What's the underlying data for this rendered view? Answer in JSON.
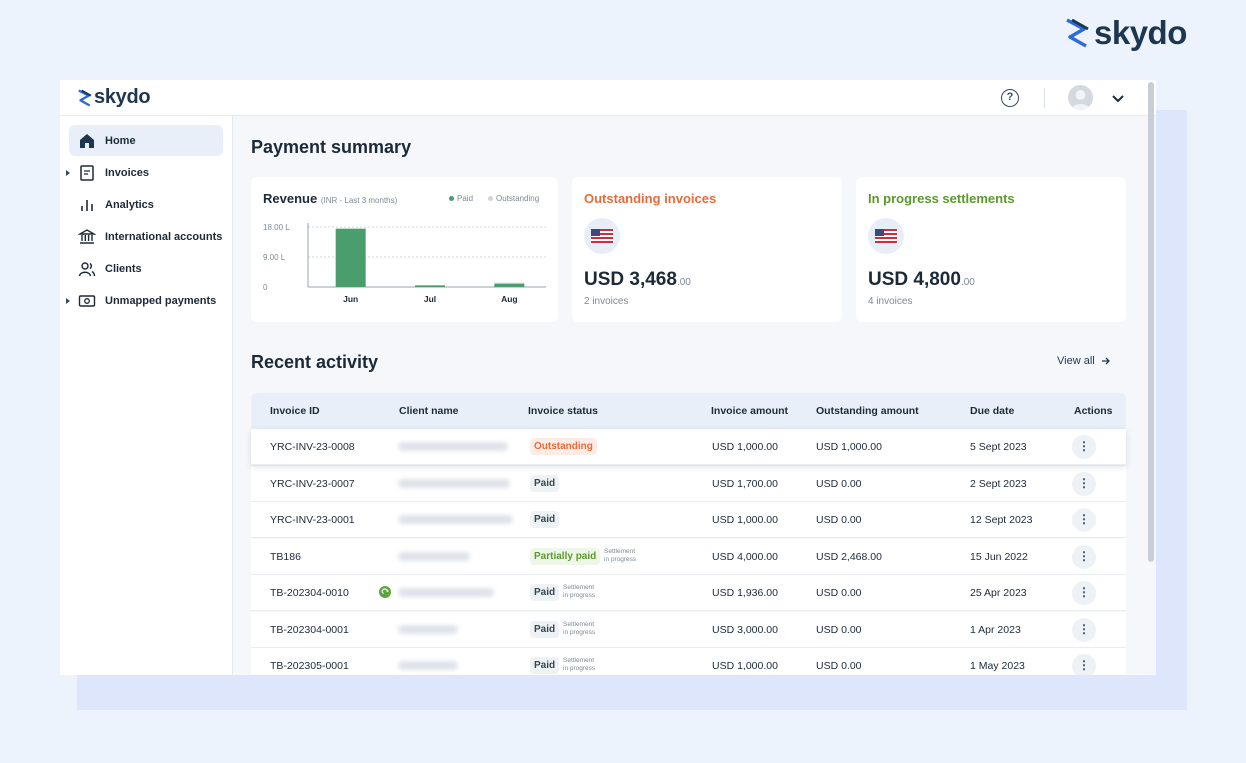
{
  "brand": {
    "name": "skydo"
  },
  "topbar": {
    "help_label": "?"
  },
  "sidebar": {
    "items": [
      {
        "label": "Home",
        "icon": "home-icon"
      },
      {
        "label": "Invoices",
        "icon": "invoice-icon"
      },
      {
        "label": "Analytics",
        "icon": "analytics-icon"
      },
      {
        "label": "International accounts",
        "icon": "bank-icon"
      },
      {
        "label": "Clients",
        "icon": "clients-icon"
      },
      {
        "label": "Unmapped payments",
        "icon": "payments-icon"
      }
    ]
  },
  "summary": {
    "title": "Payment summary",
    "revenue": {
      "title": "Revenue",
      "subtitle": "(INR - Last 3 months)",
      "legend": [
        "Paid",
        "Outstanding"
      ]
    },
    "outstanding": {
      "title": "Outstanding invoices",
      "amount": "USD 3,468",
      "cents": ".00",
      "count": "2 invoices"
    },
    "in_progress": {
      "title": "In progress settlements",
      "amount": "USD 4,800",
      "cents": ".00",
      "count": "4 invoices"
    }
  },
  "chart_data": {
    "type": "bar",
    "categories": [
      "Jun",
      "Jul",
      "Aug"
    ],
    "series": [
      {
        "name": "Paid",
        "values": [
          17.5,
          0.5,
          1.0
        ]
      },
      {
        "name": "Outstanding",
        "values": [
          0,
          0,
          0.3
        ]
      }
    ],
    "yticks": [
      "18.00 L",
      "9.00 L",
      "0"
    ],
    "ylim": [
      0,
      18
    ],
    "grid": true,
    "legend": "top-right",
    "colors": {
      "paid": "#4a9d6c",
      "outstanding": "#cfd5dc"
    }
  },
  "activity": {
    "title": "Recent activity",
    "view_all": "View all",
    "columns": [
      "Invoice ID",
      "Client name",
      "Invoice status",
      "Invoice amount",
      "Outstanding amount",
      "Due date",
      "Actions"
    ],
    "rows": [
      {
        "id": "YRC-INV-23-0008",
        "status": "Outstanding",
        "status_type": "outstanding",
        "amount": "USD 1,000.00",
        "outstanding": "USD 1,000.00",
        "due": "5 Sept 2023"
      },
      {
        "id": "YRC-INV-23-0007",
        "status": "Paid",
        "status_type": "paid",
        "amount": "USD 1,700.00",
        "outstanding": "USD 0.00",
        "due": "2 Sept 2023"
      },
      {
        "id": "YRC-INV-23-0001",
        "status": "Paid",
        "status_type": "paid",
        "amount": "USD 1,000.00",
        "outstanding": "USD 0.00",
        "due": "12 Sept 2023"
      },
      {
        "id": "TB186",
        "status": "Partially paid",
        "status_type": "partial",
        "note_1": "Settlement",
        "note_2": "in progress",
        "amount": "USD 4,000.00",
        "outstanding": "USD 2,468.00",
        "due": "15 Jun 2022"
      },
      {
        "id": "TB-202304-0010",
        "status": "Paid",
        "status_type": "paid",
        "note_1": "Settlement",
        "note_2": "in progress",
        "amount": "USD 1,936.00",
        "outstanding": "USD 0.00",
        "due": "25 Apr 2023"
      },
      {
        "id": "TB-202304-0001",
        "status": "Paid",
        "status_type": "paid",
        "note_1": "Settlement",
        "note_2": "in progress",
        "amount": "USD 3,000.00",
        "outstanding": "USD 0.00",
        "due": "1 Apr 2023"
      },
      {
        "id": "TB-202305-0001",
        "status": "Paid",
        "status_type": "paid",
        "note_1": "Settlement",
        "note_2": "in progress",
        "amount": "USD 1,000.00",
        "outstanding": "USD 0.00",
        "due": "1 May 2023"
      }
    ]
  },
  "colors": {
    "accent": "#1e3750",
    "outstanding": "#e96a3a",
    "settled": "#5a9a2a",
    "paid_bar": "#4a9d6c"
  }
}
